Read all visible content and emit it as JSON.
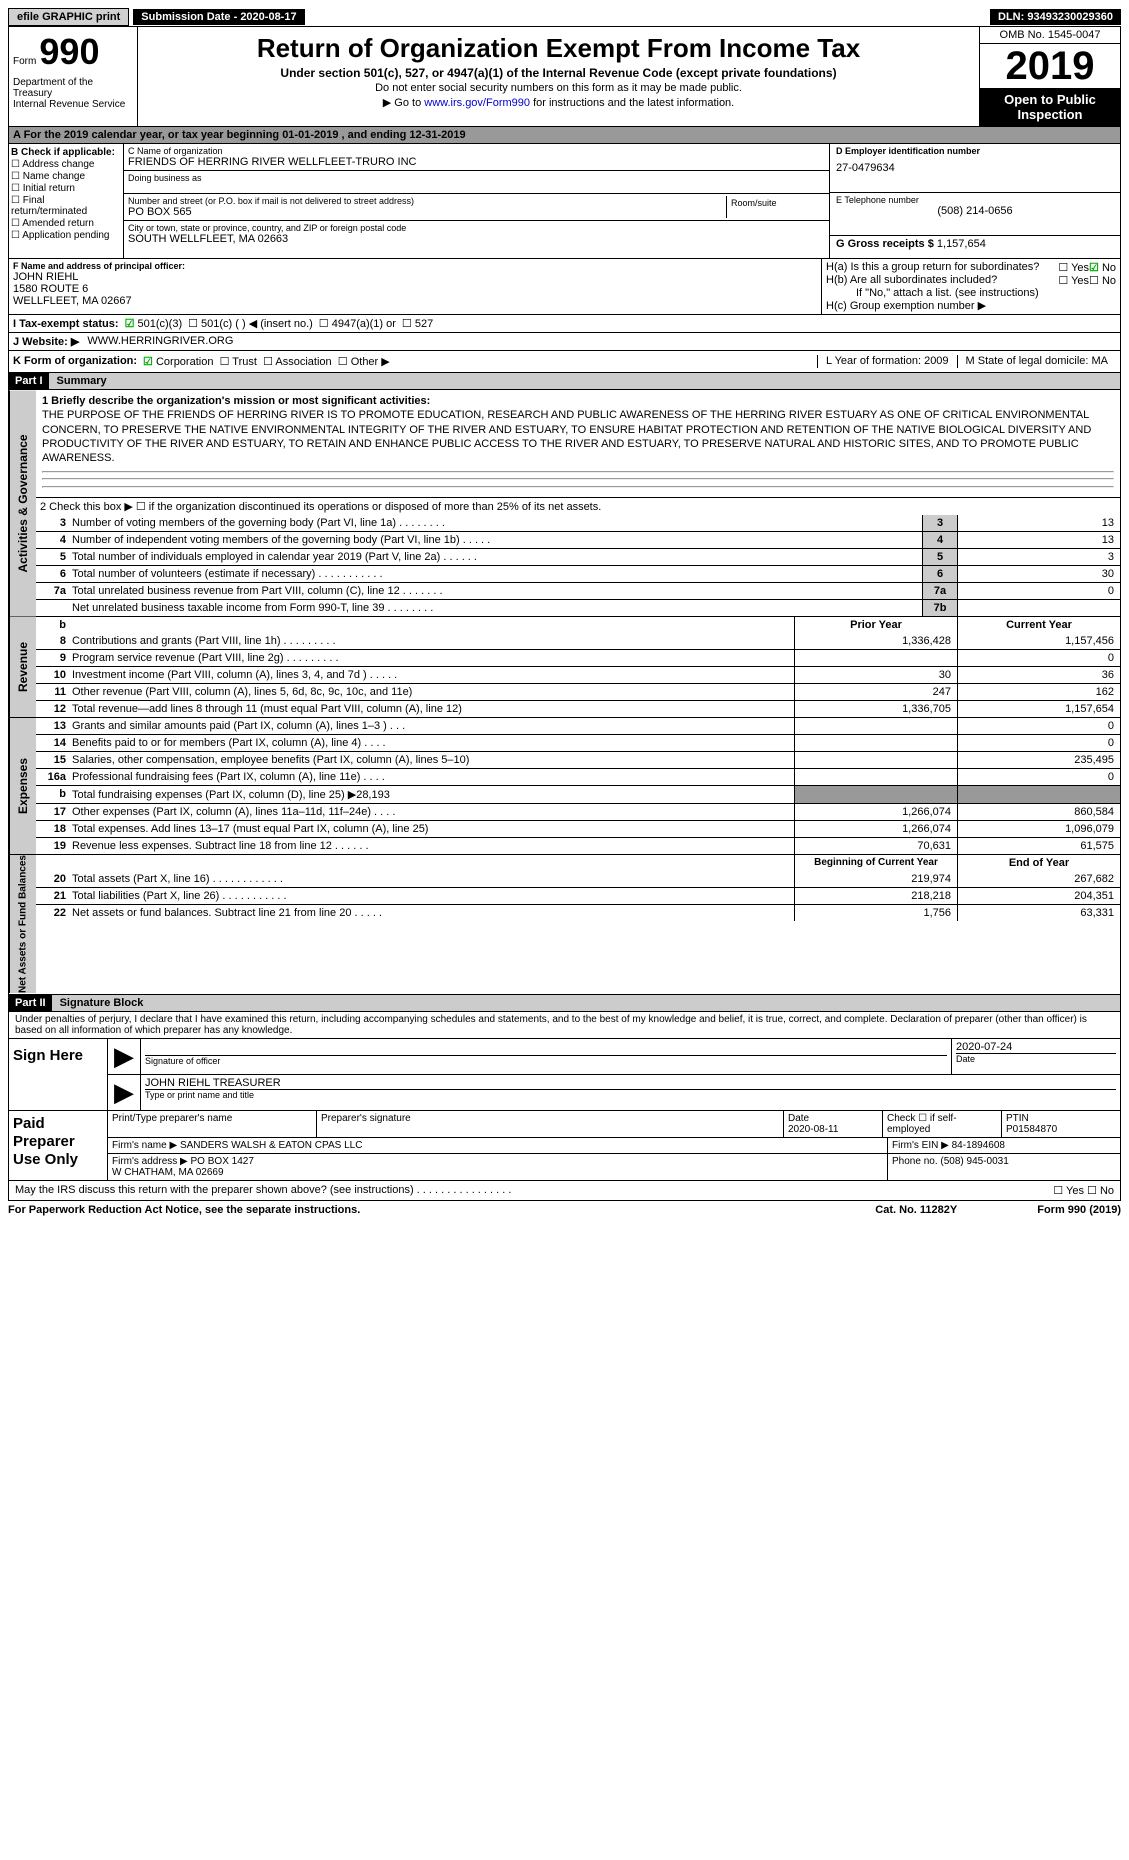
{
  "topbar": {
    "efile": "efile GRAPHIC print",
    "submission": "Submission Date - 2020-08-17",
    "dln": "DLN: 93493230029360"
  },
  "header": {
    "form_label": "Form",
    "form_num": "990",
    "dept": "Department of the Treasury\nInternal Revenue Service",
    "title": "Return of Organization Exempt From Income Tax",
    "sub1": "Under section 501(c), 527, or 4947(a)(1) of the Internal Revenue Code (except private foundations)",
    "sub2": "Do not enter social security numbers on this form as it may be made public.",
    "sub3_pre": "Go to ",
    "sub3_link": "www.irs.gov/Form990",
    "sub3_post": " for instructions and the latest information.",
    "omb": "OMB No. 1545-0047",
    "year": "2019",
    "open": "Open to Public Inspection"
  },
  "rowA": "A   For the 2019 calendar year, or tax year beginning 01-01-2019   , and ending 12-31-2019",
  "colB": {
    "hdr": "B Check if applicable:",
    "items": [
      "Address change",
      "Name change",
      "Initial return",
      "Final return/terminated",
      "Amended return",
      "Application pending"
    ]
  },
  "colC": {
    "name_lbl": "C Name of organization",
    "name": "FRIENDS OF HERRING RIVER WELLFLEET-TRURO INC",
    "dba_lbl": "Doing business as",
    "dba": "",
    "addr_lbl": "Number and street (or P.O. box if mail is not delivered to street address)",
    "addr": "PO BOX 565",
    "room_lbl": "Room/suite",
    "city_lbl": "City or town, state or province, country, and ZIP or foreign postal code",
    "city": "SOUTH WELLFLEET, MA  02663"
  },
  "colD": {
    "ein_lbl": "D Employer identification number",
    "ein": "27-0479634",
    "tel_lbl": "E Telephone number",
    "tel": "(508) 214-0656",
    "gross_lbl": "G Gross receipts $",
    "gross": "1,157,654"
  },
  "rowF": {
    "lbl": "F Name and address of principal officer:",
    "name": "JOHN RIEHL",
    "addr1": "1580 ROUTE 6",
    "addr2": "WELLFLEET, MA  02667"
  },
  "rowH": {
    "ha": "H(a)  Is this a group return for subordinates?",
    "hb": "H(b)  Are all subordinates included?",
    "hb_note": "If \"No,\" attach a list. (see instructions)",
    "hc": "H(c)  Group exemption number ▶",
    "yes": "Yes",
    "no": "No"
  },
  "rowI": {
    "lbl": "I    Tax-exempt status:",
    "opts": [
      "501(c)(3)",
      "501(c) (   ) ◀ (insert no.)",
      "4947(a)(1) or",
      "527"
    ]
  },
  "rowJ": {
    "lbl": "J   Website: ▶",
    "val": "WWW.HERRINGRIVER.ORG"
  },
  "rowK": {
    "lbl": "K Form of organization:",
    "opts": [
      "Corporation",
      "Trust",
      "Association",
      "Other ▶"
    ],
    "L": "L Year of formation: 2009",
    "M": "M State of legal domicile: MA"
  },
  "part1": {
    "hdr": "Part I",
    "title": "Summary"
  },
  "mission": {
    "lbl": "1   Briefly describe the organization's mission or most significant activities:",
    "text": "THE PURPOSE OF THE FRIENDS OF HERRING RIVER IS TO PROMOTE EDUCATION, RESEARCH AND PUBLIC AWARENESS OF THE HERRING RIVER ESTUARY AS ONE OF CRITICAL ENVIRONMENTAL CONCERN, TO PRESERVE THE NATIVE ENVIRONMENTAL INTEGRITY OF THE RIVER AND ESTUARY, TO ENSURE HABITAT PROTECTION AND RETENTION OF THE NATIVE BIOLOGICAL DIVERSITY AND PRODUCTIVITY OF THE RIVER AND ESTUARY, TO RETAIN AND ENHANCE PUBLIC ACCESS TO THE RIVER AND ESTUARY, TO PRESERVE NATURAL AND HISTORIC SITES, AND TO PROMOTE PUBLIC AWARENESS."
  },
  "line2": "2   Check this box ▶ ☐  if the organization discontinued its operations or disposed of more than 25% of its net assets.",
  "gov_lines": [
    {
      "n": "3",
      "d": "Number of voting members of the governing body (Part VI, line 1a)  .    .    .    .    .    .    .    .",
      "r": "3",
      "v": "13"
    },
    {
      "n": "4",
      "d": "Number of independent voting members of the governing body (Part VI, line 1b)   .    .    .    .    .",
      "r": "4",
      "v": "13"
    },
    {
      "n": "5",
      "d": "Total number of individuals employed in calendar year 2019 (Part V, line 2a)   .    .    .    .    .    .",
      "r": "5",
      "v": "3"
    },
    {
      "n": "6",
      "d": "Total number of volunteers (estimate if necessary)   .    .    .    .    .    .    .    .    .    .    .",
      "r": "6",
      "v": "30"
    },
    {
      "n": "7a",
      "d": "Total unrelated business revenue from Part VIII, column (C), line 12   .    .    .    .    .    .    .",
      "r": "7a",
      "v": "0"
    },
    {
      "n": "",
      "d": "Net unrelated business taxable income from Form 990-T, line 39   .    .    .    .    .    .    .    .",
      "r": "7b",
      "v": ""
    }
  ],
  "rev_hdr": {
    "py": "Prior Year",
    "cy": "Current Year"
  },
  "rev_lines": [
    {
      "n": "8",
      "d": "Contributions and grants (Part VIII, line 1h)   .    .    .    .    .    .    .    .    .",
      "py": "1,336,428",
      "cy": "1,157,456"
    },
    {
      "n": "9",
      "d": "Program service revenue (Part VIII, line 2g)   .    .    .    .    .    .    .    .    .",
      "py": "",
      "cy": "0"
    },
    {
      "n": "10",
      "d": "Investment income (Part VIII, column (A), lines 3, 4, and 7d )   .    .    .    .    .",
      "py": "30",
      "cy": "36"
    },
    {
      "n": "11",
      "d": "Other revenue (Part VIII, column (A), lines 5, 6d, 8c, 9c, 10c, and 11e)",
      "py": "247",
      "cy": "162"
    },
    {
      "n": "12",
      "d": "Total revenue—add lines 8 through 11 (must equal Part VIII, column (A), line 12)",
      "py": "1,336,705",
      "cy": "1,157,654"
    }
  ],
  "exp_lines": [
    {
      "n": "13",
      "d": "Grants and similar amounts paid (Part IX, column (A), lines 1–3 )   .    .    .",
      "py": "",
      "cy": "0"
    },
    {
      "n": "14",
      "d": "Benefits paid to or for members (Part IX, column (A), line 4)   .    .    .    .",
      "py": "",
      "cy": "0"
    },
    {
      "n": "15",
      "d": "Salaries, other compensation, employee benefits (Part IX, column (A), lines 5–10)",
      "py": "",
      "cy": "235,495"
    },
    {
      "n": "16a",
      "d": "Professional fundraising fees (Part IX, column (A), line 11e)   .    .    .    .",
      "py": "",
      "cy": "0"
    },
    {
      "n": "b",
      "d": "Total fundraising expenses (Part IX, column (D), line 25) ▶28,193",
      "py": "shade",
      "cy": "shade"
    },
    {
      "n": "17",
      "d": "Other expenses (Part IX, column (A), lines 11a–11d, 11f–24e)   .    .    .    .",
      "py": "1,266,074",
      "cy": "860,584"
    },
    {
      "n": "18",
      "d": "Total expenses. Add lines 13–17 (must equal Part IX, column (A), line 25)",
      "py": "1,266,074",
      "cy": "1,096,079"
    },
    {
      "n": "19",
      "d": "Revenue less expenses. Subtract line 18 from line 12   .    .    .    .    .    .",
      "py": "70,631",
      "cy": "61,575"
    }
  ],
  "na_hdr": {
    "py": "Beginning of Current Year",
    "cy": "End of Year"
  },
  "na_lines": [
    {
      "n": "20",
      "d": "Total assets (Part X, line 16)   .    .    .    .    .    .    .    .    .    .    .    .",
      "py": "219,974",
      "cy": "267,682"
    },
    {
      "n": "21",
      "d": "Total liabilities (Part X, line 26)   .    .    .    .    .    .    .    .    .    .    .",
      "py": "218,218",
      "cy": "204,351"
    },
    {
      "n": "22",
      "d": "Net assets or fund balances. Subtract line 21 from line 20   .    .    .    .    .",
      "py": "1,756",
      "cy": "63,331"
    }
  ],
  "part2": {
    "hdr": "Part II",
    "title": "Signature Block"
  },
  "perjury": "Under penalties of perjury, I declare that I have examined this return, including accompanying schedules and statements, and to the best of my knowledge and belief, it is true, correct, and complete. Declaration of preparer (other than officer) is based on all information of which preparer has any knowledge.",
  "sign": {
    "here": "Sign Here",
    "sig_lbl": "Signature of officer",
    "date": "2020-07-24",
    "date_lbl": "Date",
    "name": "JOHN RIEHL TREASURER",
    "name_lbl": "Type or print name and title"
  },
  "prep": {
    "left": "Paid Preparer Use Only",
    "h_name": "Print/Type preparer's name",
    "h_sig": "Preparer's signature",
    "h_date": "Date",
    "date": "2020-08-11",
    "h_check": "Check ☐ if self-employed",
    "h_ptin": "PTIN",
    "ptin": "P01584870",
    "firm_lbl": "Firm's name     ▶",
    "firm": "SANDERS WALSH & EATON CPAS LLC",
    "ein_lbl": "Firm's EIN ▶",
    "ein": "84-1894608",
    "addr_lbl": "Firm's address ▶",
    "addr": "PO BOX 1427\nW CHATHAM, MA  02669",
    "phone_lbl": "Phone no.",
    "phone": "(508) 945-0031"
  },
  "discuss": "May the IRS discuss this return with the preparer shown above? (see instructions)   .    .    .    .    .    .    .    .    .    .    .    .    .    .    .    .",
  "footer": {
    "pra": "For Paperwork Reduction Act Notice, see the separate instructions.",
    "cat": "Cat. No. 11282Y",
    "form": "Form 990 (2019)"
  },
  "side_labels": {
    "ag": "Activities & Governance",
    "rev": "Revenue",
    "exp": "Expenses",
    "na": "Net Assets or Fund Balances"
  }
}
